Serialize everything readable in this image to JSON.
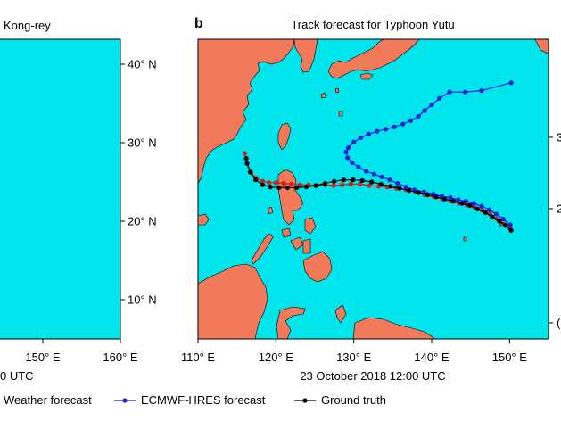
{
  "panel_a": {
    "title": "Kong-rey",
    "time_label": "0 UTC",
    "x_ticks": [
      {
        "lon": 150,
        "label": "150° E"
      },
      {
        "lon": 160,
        "label": "160° E"
      }
    ],
    "y_ticks": [
      {
        "lat": 40,
        "label": "40° N"
      },
      {
        "lat": 30,
        "label": "30° N"
      },
      {
        "lat": 20,
        "label": "20° N"
      },
      {
        "lat": 10,
        "label": "10° N"
      }
    ]
  },
  "panel_b": {
    "letter": "b",
    "title": "Track forecast for Typhoon Yutu",
    "time_label": "23 October 2018 12:00 UTC",
    "x_ticks": [
      {
        "lon": 110,
        "label": "110° E"
      },
      {
        "lon": 120,
        "label": "120° E"
      },
      {
        "lon": 130,
        "label": "130° E"
      },
      {
        "lon": 140,
        "label": "140° E"
      },
      {
        "lon": 150,
        "label": "150° E"
      }
    ],
    "right_tick_labels": [
      {
        "lat": 30,
        "label": "3"
      },
      {
        "lat": 20,
        "label": "2"
      },
      {
        "lat": 0,
        "label": "("
      }
    ]
  },
  "legend": {
    "items": [
      {
        "label": "Weather forecast",
        "color": "#cc1f1f"
      },
      {
        "label": "ECMWF-HRES forecast",
        "color": "#1f1fd6"
      },
      {
        "label": "Ground truth",
        "color": "#000000"
      }
    ]
  },
  "colors": {
    "ocean": "#00e4ec",
    "land": "#f27a5a",
    "weather_forecast": "#cc1f1f",
    "ecmwf_hres": "#1f1fd6",
    "ground_truth": "#000000"
  },
  "map_data": {
    "extent_b": {
      "lon": [
        110,
        155
      ],
      "lat": [
        0,
        42
      ]
    },
    "tracks": {
      "weather_forecast": [
        [
          150.1,
          15.4
        ],
        [
          149.3,
          16.1
        ],
        [
          148.4,
          16.8
        ],
        [
          147.5,
          17.5
        ],
        [
          146.5,
          18.0
        ],
        [
          145.5,
          18.5
        ],
        [
          144.5,
          18.8
        ],
        [
          143.5,
          19.0
        ],
        [
          142.5,
          19.3
        ],
        [
          141.4,
          19.6
        ],
        [
          140.3,
          19.9
        ],
        [
          139.1,
          20.2
        ],
        [
          137.9,
          20.6
        ],
        [
          136.7,
          20.9
        ],
        [
          135.5,
          21.1
        ],
        [
          134.3,
          21.3
        ],
        [
          133.2,
          21.4
        ],
        [
          132.0,
          21.5
        ],
        [
          130.8,
          21.7
        ],
        [
          129.6,
          21.7
        ],
        [
          128.5,
          21.6
        ],
        [
          127.4,
          21.5
        ],
        [
          126.3,
          21.6
        ],
        [
          125.2,
          21.5
        ],
        [
          124.2,
          21.6
        ],
        [
          123.1,
          21.6
        ],
        [
          122.0,
          21.7
        ],
        [
          121.0,
          21.8
        ],
        [
          120.0,
          21.9
        ],
        [
          119.1,
          21.9
        ],
        [
          118.3,
          22.1
        ],
        [
          117.5,
          22.5
        ],
        [
          116.8,
          23.3
        ],
        [
          116.3,
          24.6
        ],
        [
          116.0,
          26.0
        ]
      ],
      "ecmwf_hres": [
        [
          150.1,
          16.0
        ],
        [
          149.2,
          16.8
        ],
        [
          148.3,
          17.5
        ],
        [
          147.4,
          18.1
        ],
        [
          146.4,
          18.6
        ],
        [
          145.4,
          19.0
        ],
        [
          144.4,
          19.3
        ],
        [
          143.4,
          19.5
        ],
        [
          142.4,
          19.8
        ],
        [
          141.3,
          20.0
        ],
        [
          140.2,
          20.3
        ],
        [
          139.0,
          20.6
        ],
        [
          137.8,
          20.9
        ],
        [
          136.7,
          21.3
        ],
        [
          135.6,
          21.8
        ],
        [
          134.6,
          22.3
        ],
        [
          133.6,
          22.7
        ],
        [
          132.6,
          23.1
        ],
        [
          131.6,
          23.5
        ],
        [
          130.6,
          24.1
        ],
        [
          129.8,
          24.7
        ],
        [
          129.2,
          25.4
        ],
        [
          129.0,
          26.2
        ],
        [
          129.3,
          26.8
        ],
        [
          130.0,
          27.6
        ],
        [
          130.9,
          28.2
        ],
        [
          131.9,
          28.7
        ],
        [
          133.0,
          29.1
        ],
        [
          134.1,
          29.4
        ],
        [
          135.2,
          29.7
        ],
        [
          136.3,
          30.1
        ],
        [
          137.3,
          30.6
        ],
        [
          138.3,
          31.2
        ],
        [
          139.1,
          32.0
        ],
        [
          140.0,
          32.8
        ],
        [
          141.0,
          33.7
        ],
        [
          142.3,
          34.6
        ],
        [
          144.3,
          34.6
        ],
        [
          146.4,
          34.8
        ],
        [
          150.2,
          35.9
        ]
      ],
      "ground_truth": [
        [
          150.2,
          15.2
        ],
        [
          149.5,
          15.9
        ],
        [
          148.7,
          16.5
        ],
        [
          147.8,
          17.1
        ],
        [
          146.9,
          17.7
        ],
        [
          145.9,
          18.2
        ],
        [
          144.9,
          18.7
        ],
        [
          143.9,
          19.0
        ],
        [
          142.8,
          19.3
        ],
        [
          141.7,
          19.6
        ],
        [
          140.6,
          19.9
        ],
        [
          139.5,
          20.2
        ],
        [
          138.3,
          20.5
        ],
        [
          137.1,
          20.8
        ],
        [
          135.9,
          21.1
        ],
        [
          134.7,
          21.4
        ],
        [
          133.5,
          21.7
        ],
        [
          132.3,
          22.0
        ],
        [
          131.1,
          22.2
        ],
        [
          129.9,
          22.3
        ],
        [
          128.7,
          22.3
        ],
        [
          127.5,
          22.1
        ],
        [
          126.3,
          21.8
        ],
        [
          125.1,
          21.5
        ],
        [
          123.9,
          21.3
        ],
        [
          122.7,
          21.2
        ],
        [
          121.5,
          21.2
        ],
        [
          120.4,
          21.2
        ],
        [
          119.3,
          21.3
        ],
        [
          118.3,
          21.6
        ],
        [
          117.4,
          22.3
        ],
        [
          116.7,
          23.4
        ],
        [
          116.3,
          24.6
        ],
        [
          116.2,
          25.3
        ]
      ]
    }
  }
}
